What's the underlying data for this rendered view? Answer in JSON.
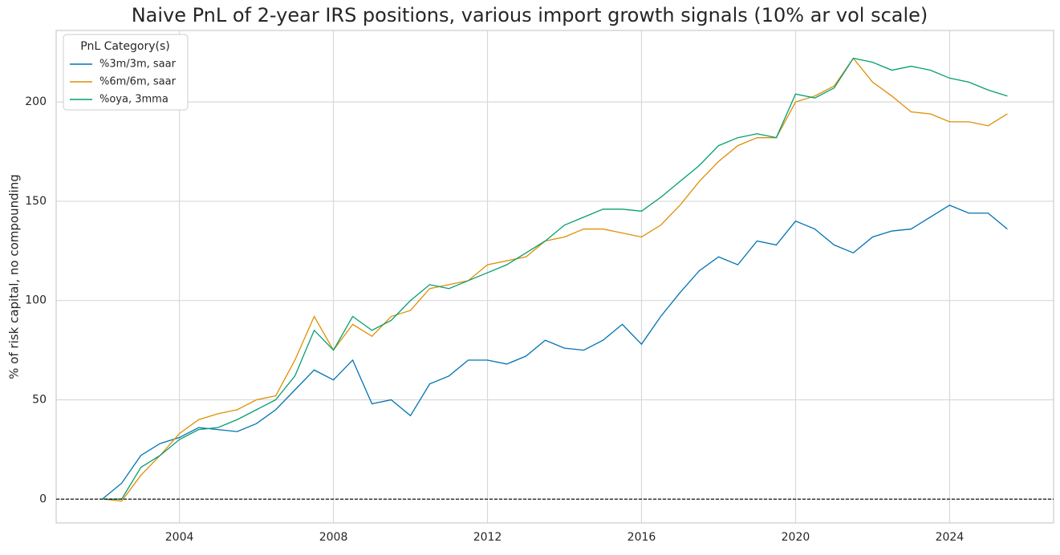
{
  "chart_data": {
    "type": "line",
    "title": "Naive PnL of 2-year IRS positions, various import growth signals (10% ar vol scale)",
    "y_label": "% of risk capital, no compounding",
    "x": [
      2002.0,
      2002.5,
      2003.0,
      2003.5,
      2004.0,
      2004.5,
      2005.0,
      2005.5,
      2006.0,
      2006.5,
      2007.0,
      2007.5,
      2008.0,
      2008.5,
      2009.0,
      2009.5,
      2010.0,
      2010.5,
      2011.0,
      2011.5,
      2012.0,
      2012.5,
      2013.0,
      2013.5,
      2014.0,
      2014.5,
      2015.0,
      2015.5,
      2016.0,
      2016.5,
      2017.0,
      2017.5,
      2018.0,
      2018.5,
      2019.0,
      2019.5,
      2020.0,
      2020.5,
      2021.0,
      2021.5,
      2022.0,
      2022.5,
      2023.0,
      2023.5,
      2024.0,
      2024.5,
      2025.0,
      2025.5
    ],
    "series": [
      {
        "name": "%3m/3m, saar",
        "color": "#0173b2",
        "values": [
          0,
          8,
          22,
          28,
          31,
          36,
          35,
          34,
          38,
          45,
          55,
          65,
          60,
          70,
          48,
          50,
          42,
          58,
          62,
          70,
          70,
          68,
          72,
          80,
          76,
          75,
          80,
          88,
          78,
          92,
          104,
          115,
          122,
          118,
          130,
          128,
          140,
          136,
          128,
          124,
          132,
          135,
          136,
          142,
          148,
          144,
          144,
          136
        ]
      },
      {
        "name": "%6m/6m, saar",
        "color": "#de8f05",
        "values": [
          0,
          -1,
          12,
          22,
          33,
          40,
          43,
          45,
          50,
          52,
          70,
          92,
          75,
          88,
          82,
          92,
          95,
          106,
          108,
          110,
          118,
          120,
          122,
          130,
          132,
          136,
          136,
          134,
          132,
          138,
          148,
          160,
          170,
          178,
          182,
          182,
          200,
          203,
          208,
          222,
          210,
          203,
          195,
          194,
          190,
          190,
          188,
          194
        ]
      },
      {
        "name": "%oya, 3mma",
        "color": "#029e73",
        "values": [
          0,
          0,
          16,
          22,
          30,
          35,
          36,
          40,
          45,
          50,
          62,
          85,
          75,
          92,
          85,
          90,
          100,
          108,
          106,
          110,
          114,
          118,
          124,
          130,
          138,
          142,
          146,
          146,
          145,
          152,
          160,
          168,
          178,
          182,
          184,
          182,
          204,
          202,
          207,
          222,
          220,
          216,
          218,
          216,
          212,
          210,
          206,
          203
        ]
      }
    ],
    "xlim": [
      2000.8,
      2026.7
    ],
    "xticks": [
      2004,
      2008,
      2012,
      2016,
      2020,
      2024
    ],
    "ylim": [
      -12,
      236
    ],
    "yticks": [
      0,
      50,
      100,
      150,
      200
    ],
    "grid": true,
    "reference_line": {
      "y": 0,
      "color": "#000000",
      "dashed": true
    },
    "legend": {
      "title": "PnL Category(s)",
      "position": "upper-left"
    }
  }
}
